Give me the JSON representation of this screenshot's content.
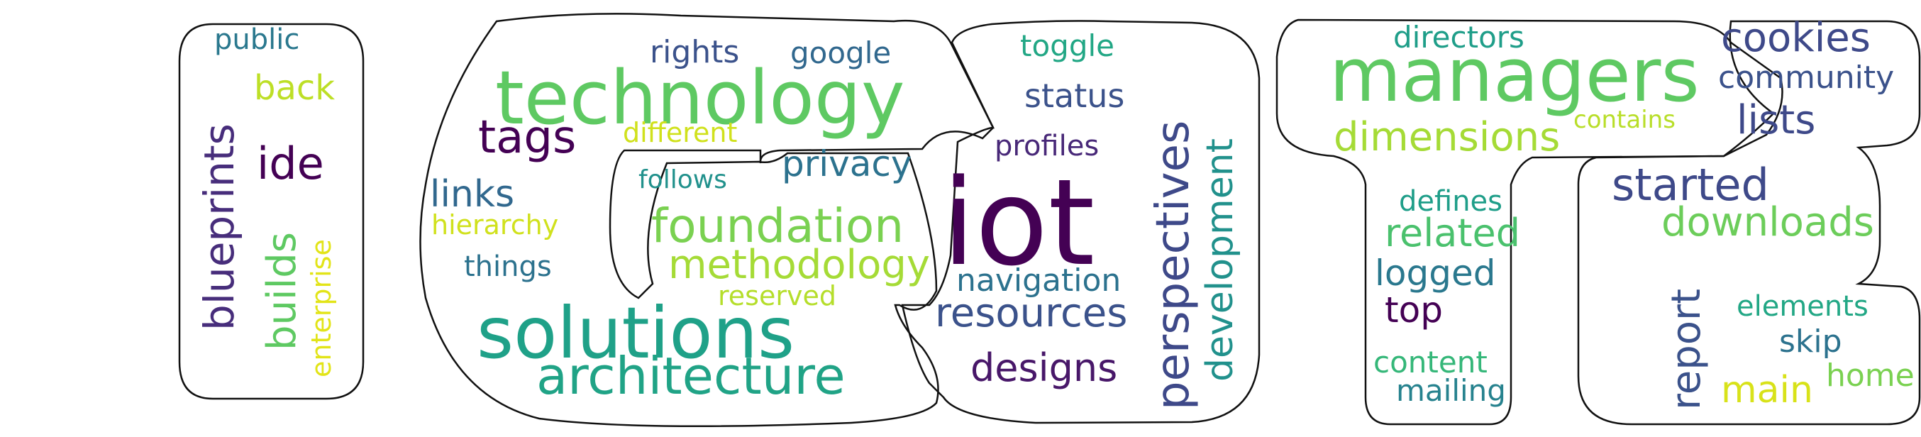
{
  "words": [
    {
      "text": "public",
      "color": "#2a788e"
    },
    {
      "text": "back",
      "color": "#bddf26"
    },
    {
      "text": "ide",
      "color": "#440154"
    },
    {
      "text": "blueprints",
      "color": "#472d7b"
    },
    {
      "text": "builds",
      "color": "#5ec962"
    },
    {
      "text": "enterprise",
      "color": "#e2e418"
    },
    {
      "text": "rights",
      "color": "#3b528b"
    },
    {
      "text": "google",
      "color": "#31688e"
    },
    {
      "text": "technology",
      "color": "#5ec962"
    },
    {
      "text": "tags",
      "color": "#440154"
    },
    {
      "text": "different",
      "color": "#d0e11c"
    },
    {
      "text": "privacy",
      "color": "#2c728e"
    },
    {
      "text": "links",
      "color": "#31688e"
    },
    {
      "text": "follows",
      "color": "#21918c"
    },
    {
      "text": "hierarchy",
      "color": "#d0e11c"
    },
    {
      "text": "foundation",
      "color": "#7ad151"
    },
    {
      "text": "methodology",
      "color": "#a5db36"
    },
    {
      "text": "things",
      "color": "#2c728e"
    },
    {
      "text": "reserved",
      "color": "#b5de2b"
    },
    {
      "text": "solutions",
      "color": "#1fa188"
    },
    {
      "text": "architecture",
      "color": "#20a386"
    },
    {
      "text": "toggle",
      "color": "#22a785"
    },
    {
      "text": "status",
      "color": "#3b528b"
    },
    {
      "text": "profiles",
      "color": "#482878"
    },
    {
      "text": "iot",
      "color": "#440154"
    },
    {
      "text": "perspectives",
      "color": "#3e4989"
    },
    {
      "text": "development",
      "color": "#21918c"
    },
    {
      "text": "navigation",
      "color": "#2c728e"
    },
    {
      "text": "resources",
      "color": "#3b528b"
    },
    {
      "text": "designs",
      "color": "#481769"
    },
    {
      "text": "directors",
      "color": "#1f9e89"
    },
    {
      "text": "managers",
      "color": "#5ec962"
    },
    {
      "text": "cookies",
      "color": "#3e4989"
    },
    {
      "text": "community",
      "color": "#3b528b"
    },
    {
      "text": "contains",
      "color": "#b8de29"
    },
    {
      "text": "dimensions",
      "color": "#a5db36"
    },
    {
      "text": "lists",
      "color": "#3e4989"
    },
    {
      "text": "started",
      "color": "#3e4989"
    },
    {
      "text": "defines",
      "color": "#1f9e89"
    },
    {
      "text": "related",
      "color": "#4ac16d"
    },
    {
      "text": "downloads",
      "color": "#6ccd5a"
    },
    {
      "text": "logged",
      "color": "#2a788e"
    },
    {
      "text": "report",
      "color": "#3b528b"
    },
    {
      "text": "elements",
      "color": "#22a785"
    },
    {
      "text": "top",
      "color": "#440154"
    },
    {
      "text": "skip",
      "color": "#2c728e"
    },
    {
      "text": "content",
      "color": "#35b779"
    },
    {
      "text": "home",
      "color": "#7ad151"
    },
    {
      "text": "main",
      "color": "#d8e219"
    },
    {
      "text": "mailing",
      "color": "#26828e"
    }
  ]
}
